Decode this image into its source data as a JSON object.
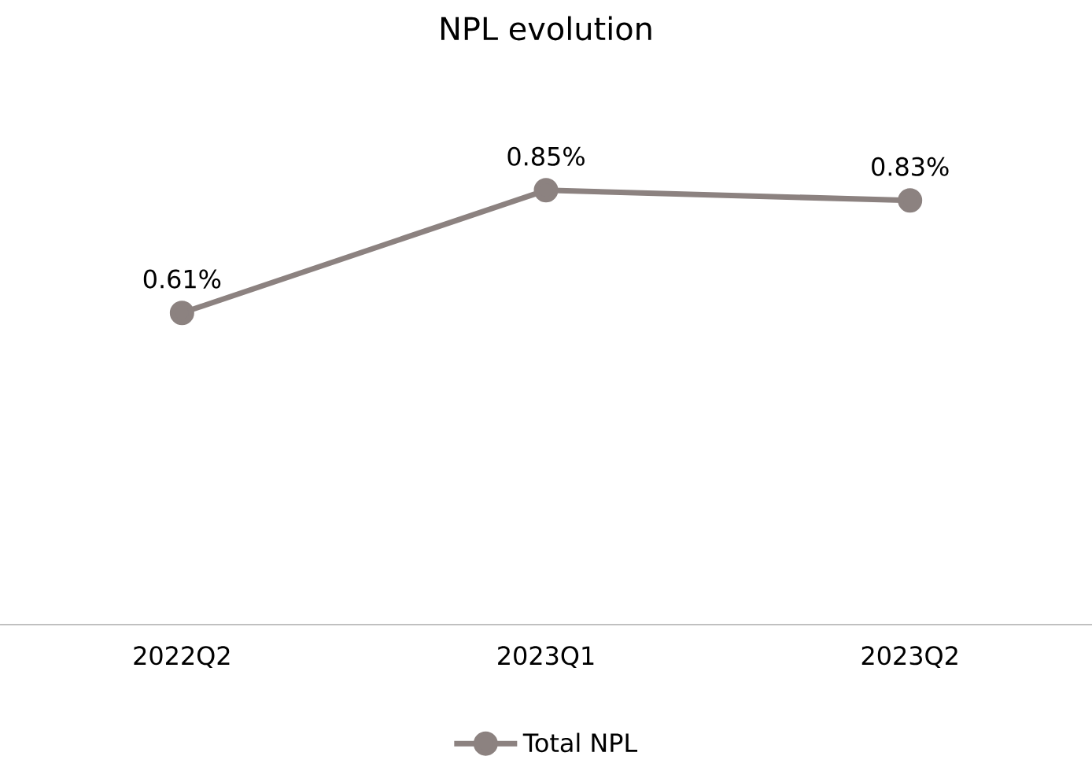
{
  "chart_data": {
    "type": "line",
    "title": "NPL evolution",
    "categories": [
      "2022Q2",
      "2023Q1",
      "2023Q2"
    ],
    "series": [
      {
        "name": "Total NPL",
        "color": "#8c8280",
        "values": [
          0.61,
          0.85,
          0.83
        ],
        "value_labels": [
          "0.61%",
          "0.85%",
          "0.83%"
        ]
      }
    ],
    "marker": "circle",
    "legend": "bottom"
  }
}
